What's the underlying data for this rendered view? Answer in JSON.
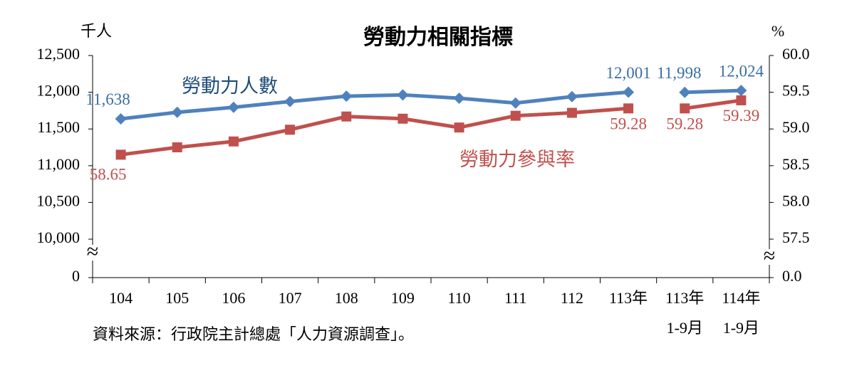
{
  "chart_data": {
    "type": "line",
    "title": "勞動力相關指標",
    "y_unit": "千人",
    "y2_unit": "%",
    "source": "資料來源：行政院主計總處「人力資源調查」。",
    "categories": [
      "104",
      "105",
      "106",
      "107",
      "108",
      "109",
      "110",
      "111",
      "112",
      "113年",
      "113年\n1-9月",
      "114年\n1-9月"
    ],
    "segment_starts": [
      0,
      10
    ],
    "series": [
      {
        "name": "勞動力人數",
        "color": "#4f81bd",
        "marker": "diamond",
        "axis": "y",
        "values": [
          11638,
          11727,
          11795,
          11874,
          11946,
          11964,
          11919,
          11853,
          11940,
          12001,
          11998,
          12024
        ],
        "value_labels": [
          "11,638",
          null,
          null,
          null,
          null,
          null,
          null,
          null,
          null,
          "12,001",
          "11,998",
          "12,024"
        ]
      },
      {
        "name": "勞動力參與率",
        "color": "#c0504d",
        "marker": "square",
        "axis": "y2",
        "values": [
          58.65,
          58.75,
          58.83,
          58.99,
          59.17,
          59.14,
          59.02,
          59.18,
          59.22,
          59.28,
          59.28,
          59.39
        ],
        "value_labels": [
          "58.65",
          null,
          null,
          null,
          null,
          null,
          null,
          null,
          null,
          "59.28",
          "59.28",
          "59.39"
        ]
      }
    ],
    "ylim": [
      0,
      12500
    ],
    "ybreak": [
      0,
      10000
    ],
    "yticks": [
      0,
      {
        "value": 10000,
        "label": "10,000"
      },
      {
        "value": 10500,
        "label": "10,500"
      },
      {
        "value": 11000,
        "label": "11,000"
      },
      {
        "value": 11500,
        "label": "11,500"
      },
      {
        "value": 12000,
        "label": "12,000"
      },
      {
        "value": 12500,
        "label": "12,500"
      }
    ],
    "y2lim": [
      0,
      60
    ],
    "y2break": [
      0,
      57.5
    ],
    "y2ticks": [
      {
        "value": 0,
        "label": "0.0"
      },
      57.5,
      {
        "value": 58,
        "label": "58.0"
      },
      58.5,
      {
        "value": 59,
        "label": "59.0"
      },
      59.5,
      {
        "value": 60,
        "label": "60.0"
      }
    ]
  }
}
